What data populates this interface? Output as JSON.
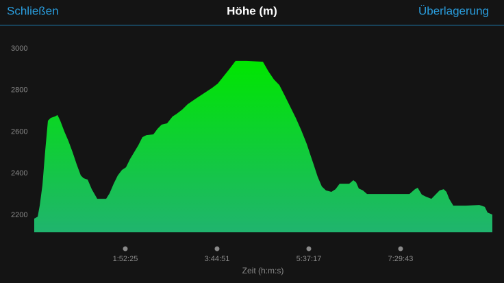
{
  "header": {
    "close": "Schließen",
    "overlay": "Überlagerung"
  },
  "chart_data": {
    "type": "area",
    "title": "Höhe (m)",
    "xlabel": "Zeit (h:m:s)",
    "x": [
      50,
      302,
      453,
      654,
      856,
      1057,
      1259,
      1561,
      1762,
      1963,
      2265,
      2567,
      2869,
      3171,
      3473,
      3675,
      3977,
      4279,
      4682,
      5336,
      5588,
      5890,
      6192,
      6494,
      6796,
      7098,
      7400,
      7702,
      8004,
      8306,
      8810,
      9112,
      9414,
      9816,
      10219,
      10521,
      10924,
      11327,
      11931,
      12535,
      13139,
      13541,
      13944,
      14347,
      14850,
      15656,
      16864,
      17267,
      17669,
      18072,
      18475,
      18878,
      19280,
      19683,
      20086,
      20388,
      20589,
      20891,
      21193,
      21495,
      21898,
      22200,
      22502,
      23207,
      23509,
      23710,
      23912,
      24214,
      24516,
      25724,
      27637,
      28040,
      28241,
      28543,
      28845,
      29248,
      29550,
      29852,
      30154,
      30355,
      30557,
      30859,
      31765,
      32771,
      33174,
      33375,
      33728
    ],
    "values": [
      2184,
      2193,
      2246,
      2345,
      2509,
      2654,
      2667,
      2674,
      2681,
      2654,
      2602,
      2556,
      2503,
      2444,
      2391,
      2378,
      2371,
      2325,
      2279,
      2279,
      2305,
      2351,
      2391,
      2417,
      2430,
      2470,
      2503,
      2536,
      2575,
      2585,
      2588,
      2615,
      2635,
      2641,
      2674,
      2687,
      2707,
      2733,
      2760,
      2786,
      2812,
      2832,
      2865,
      2898,
      2941,
      2941,
      2937,
      2891,
      2852,
      2825,
      2773,
      2720,
      2667,
      2608,
      2542,
      2483,
      2444,
      2384,
      2338,
      2319,
      2312,
      2325,
      2351,
      2351,
      2368,
      2358,
      2328,
      2319,
      2302,
      2302,
      2302,
      2325,
      2332,
      2299,
      2289,
      2279,
      2299,
      2319,
      2325,
      2312,
      2279,
      2246,
      2246,
      2249,
      2240,
      2213,
      2203
    ],
    "fill_gradient": [
      "#00e600",
      "#20b46e"
    ],
    "xlim": [
      0,
      33730
    ],
    "ylim": [
      2118,
      3036
    ],
    "xticks": [
      {
        "value": 6745,
        "label": "1:52:25"
      },
      {
        "value": 13491,
        "label": "3:44:51"
      },
      {
        "value": 20237,
        "label": "5:37:17"
      },
      {
        "value": 26983,
        "label": "7:29:43"
      }
    ],
    "yticks": [
      2200,
      2400,
      2600,
      2800,
      3000
    ],
    "grid": false
  }
}
